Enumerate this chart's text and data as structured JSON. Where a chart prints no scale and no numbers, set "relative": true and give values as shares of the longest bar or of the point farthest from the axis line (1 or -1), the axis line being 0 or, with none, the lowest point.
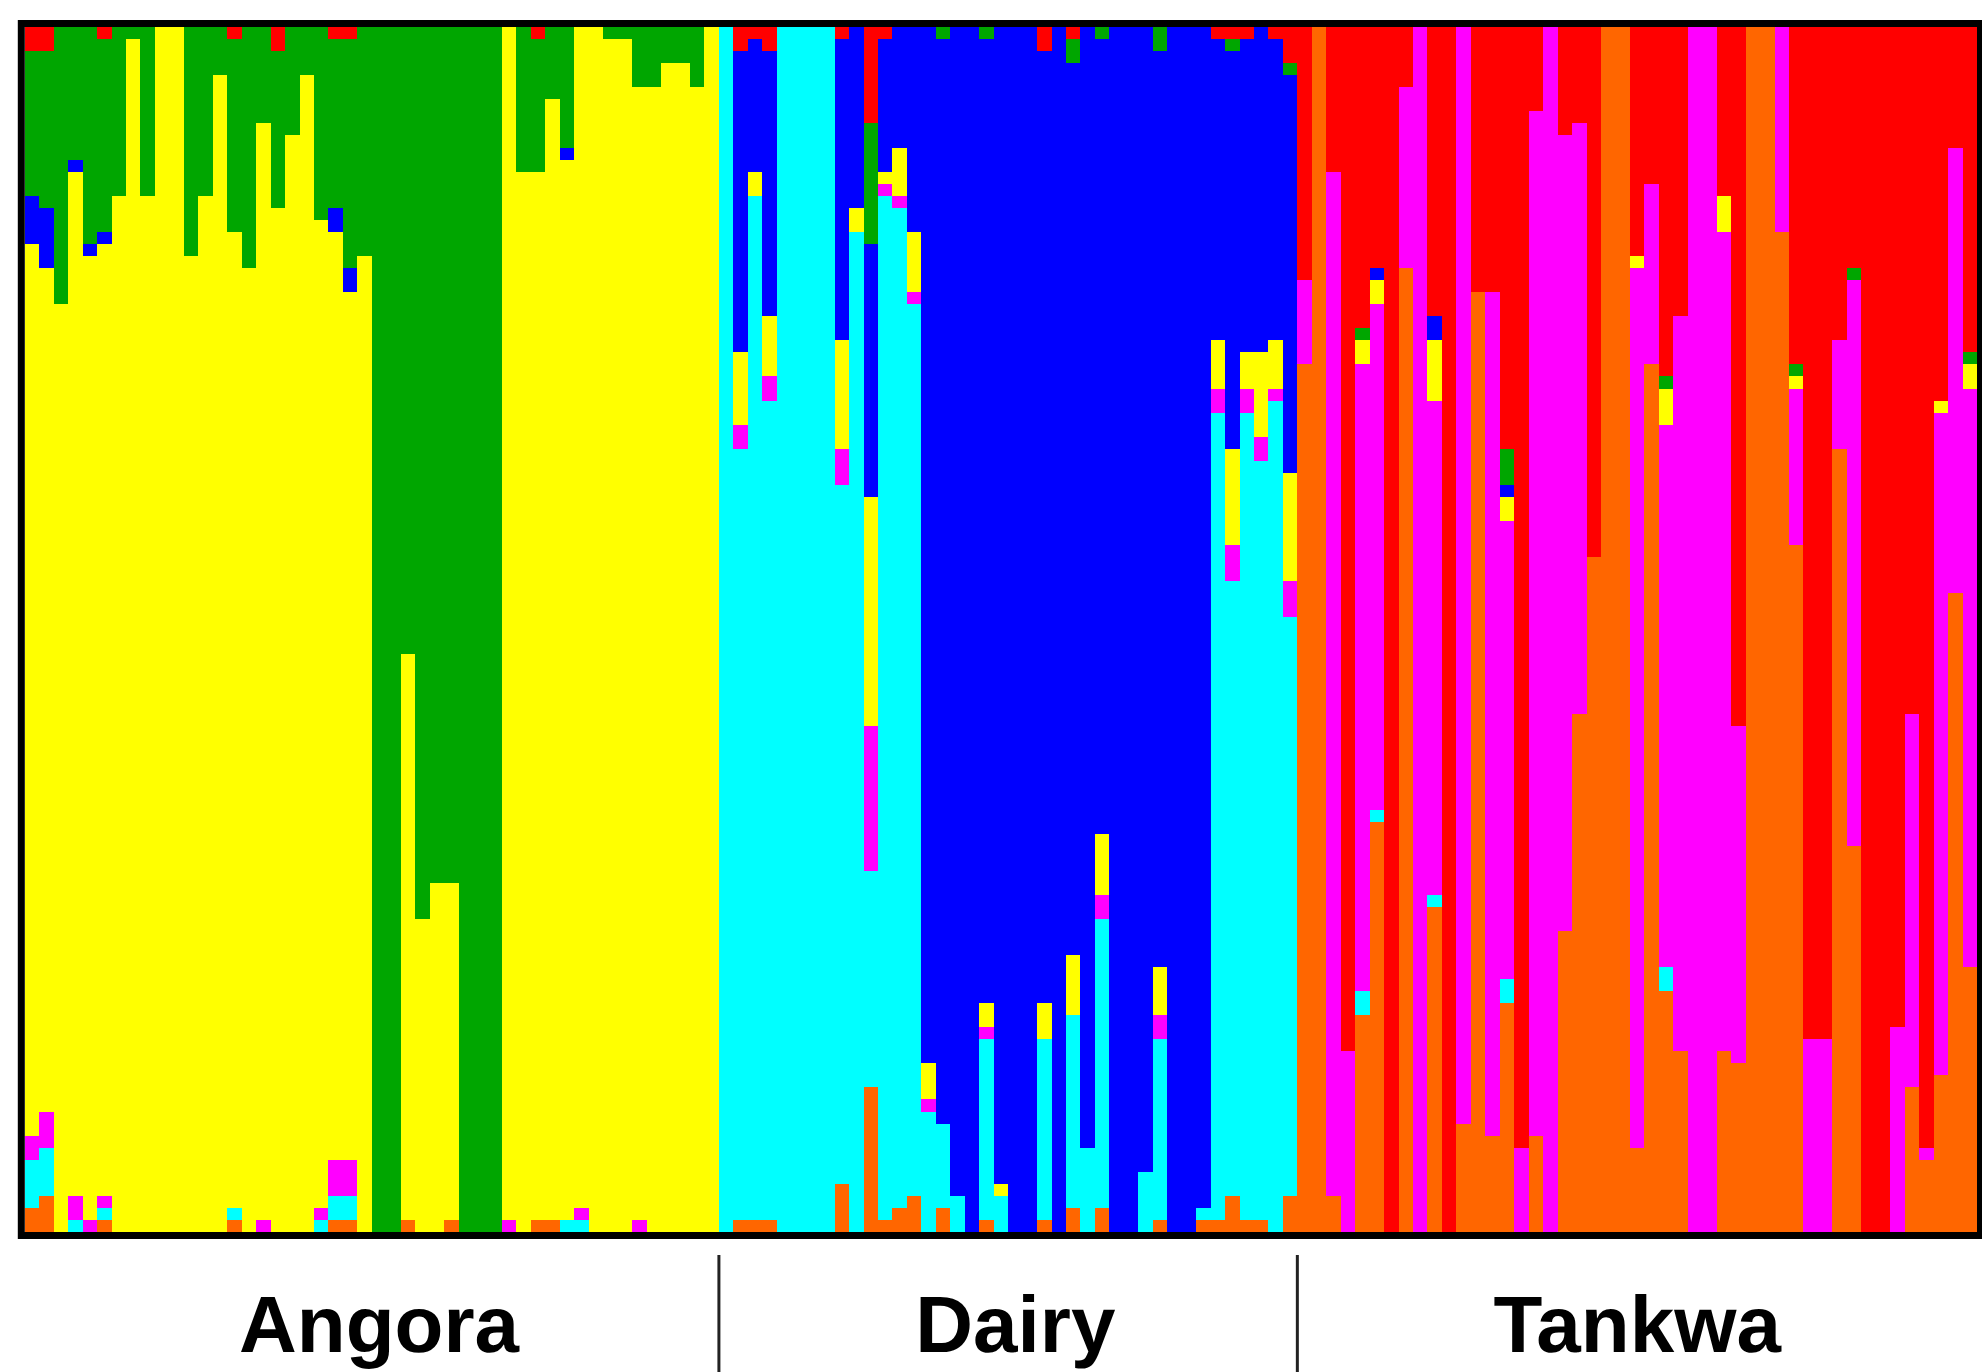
{
  "chart_data": {
    "type": "bar",
    "stacked": true,
    "relative": true,
    "categories": [
      null,
      null,
      null,
      null,
      null,
      null,
      null,
      null,
      null,
      null,
      null,
      null,
      null,
      null,
      null,
      null,
      null,
      null,
      null,
      null,
      null,
      null,
      null,
      null,
      "Angora",
      null,
      null,
      null,
      null,
      null,
      null,
      null,
      null,
      null,
      null,
      null,
      null,
      null,
      null,
      null,
      null,
      null,
      null,
      null,
      null,
      null,
      null,
      null,
      null,
      null,
      null,
      null,
      null,
      null,
      null,
      null,
      null,
      null,
      null,
      null,
      null,
      null,
      null,
      null,
      null,
      null,
      null,
      null,
      "Dairy",
      null,
      null,
      null,
      null,
      null,
      null,
      null,
      null,
      null,
      null,
      null,
      null,
      null,
      null,
      null,
      null,
      null,
      null,
      null,
      null,
      null,
      null,
      null,
      null,
      null,
      null,
      null,
      null,
      null,
      null,
      null,
      null,
      null,
      null,
      null,
      null,
      null,
      null,
      null,
      null,
      null,
      null,
      "Tankwa",
      null,
      null,
      null,
      null,
      null,
      null,
      null,
      null,
      null,
      null,
      null,
      null,
      null,
      null,
      null,
      null,
      null,
      null,
      null,
      null,
      null,
      null,
      null
    ],
    "series": [
      {
        "color": "#ff6600",
        "values": [
          0.02,
          0.03,
          0,
          0,
          0,
          0.01,
          0,
          0,
          0,
          0,
          0,
          0,
          0,
          0,
          0.01,
          0,
          0,
          0,
          0,
          0,
          0,
          0.01,
          0.01,
          0,
          0,
          0,
          0.01,
          0,
          0,
          0.01,
          0,
          0,
          0,
          0,
          0,
          0.01,
          0.01,
          0,
          0,
          0,
          0,
          0,
          0,
          0,
          0,
          0,
          0,
          0,
          0,
          0.01,
          0.01,
          0.01,
          0,
          0,
          0,
          0,
          0.04,
          0,
          0.12,
          0.01,
          0.02,
          0.03,
          0,
          0.02,
          0,
          0,
          0.01,
          0,
          0,
          0,
          0.01,
          0,
          0.02,
          0,
          0.02,
          0,
          0,
          0,
          0.01,
          0,
          0,
          0.01,
          0.01,
          0.03,
          0.01,
          0.01,
          0,
          0.03,
          0.72,
          1,
          0.03,
          0,
          0.18,
          0.34,
          0,
          0.8,
          0,
          0.27,
          0,
          0.09,
          0.78,
          0.08,
          0.19,
          0,
          0.08,
          0,
          0.25,
          0.43,
          0.56,
          1,
          1,
          0.07,
          0.72,
          0.2,
          0.15,
          0,
          0,
          0.15,
          0.14,
          1,
          1,
          0.83,
          0.57,
          0,
          0,
          0.65,
          0.32,
          0,
          0,
          0,
          0.12,
          0.06,
          0.13,
          0.53,
          0.22
        ]
      },
      {
        "color": "#00ffff",
        "values": [
          0.04,
          0.04,
          0,
          0.01,
          0,
          0.01,
          0,
          0,
          0,
          0,
          0,
          0,
          0,
          0,
          0.01,
          0,
          0,
          0,
          0,
          0,
          0.01,
          0.02,
          0.02,
          0,
          0,
          0,
          0,
          0,
          0,
          0,
          0,
          0,
          0,
          0,
          0,
          0,
          0,
          0.01,
          0.01,
          0,
          0,
          0,
          0,
          0,
          0,
          0,
          0,
          0,
          1,
          0.64,
          0.85,
          0.68,
          1,
          1,
          1,
          1,
          0.58,
          0.83,
          0.18,
          0.85,
          0.83,
          0.74,
          0.1,
          0.07,
          0.03,
          0,
          0.15,
          0.03,
          0,
          0,
          0.15,
          0,
          0.16,
          0.07,
          0.24,
          0,
          0,
          0.05,
          0.15,
          0,
          0,
          0.01,
          0.67,
          0.51,
          0.67,
          0.63,
          0.69,
          0.48,
          0,
          0,
          0,
          0,
          0.02,
          0.01,
          0,
          0,
          0,
          0.01,
          0,
          0,
          0,
          0,
          0.02,
          0,
          0,
          0,
          0,
          0,
          0,
          0,
          0,
          0,
          0,
          0.02,
          0,
          0,
          0,
          0,
          0,
          0,
          0,
          0,
          0,
          0,
          0,
          0,
          0,
          0,
          0,
          0,
          0,
          0,
          0,
          0,
          0
        ]
      },
      {
        "color": "#ff00ff",
        "values": [
          0.02,
          0.03,
          0,
          0.02,
          0.01,
          0.01,
          0,
          0,
          0,
          0,
          0,
          0,
          0,
          0,
          0,
          0,
          0.01,
          0,
          0,
          0,
          0.01,
          0.03,
          0.03,
          0,
          0,
          0,
          0,
          0,
          0,
          0,
          0,
          0,
          0,
          0.01,
          0,
          0,
          0,
          0,
          0.01,
          0,
          0,
          0,
          0.01,
          0,
          0,
          0,
          0,
          0,
          0,
          0.02,
          0,
          0.02,
          0,
          0,
          0,
          0,
          0.03,
          0,
          0.12,
          0.01,
          0.01,
          0.01,
          0.01,
          0,
          0,
          0,
          0.01,
          0,
          0,
          0,
          0,
          0,
          0,
          0,
          0.02,
          0,
          0,
          0,
          0.02,
          0,
          0,
          0,
          0.02,
          0.03,
          0.02,
          0.02,
          0.01,
          0.03,
          0.07,
          0,
          0.85,
          0.15,
          0.52,
          0.42,
          0,
          0.15,
          1,
          0.41,
          0,
          0.91,
          0,
          0.7,
          0.38,
          0.07,
          0.85,
          1,
          0.66,
          0.49,
          0,
          0,
          0,
          0.73,
          0.15,
          0.45,
          0.61,
          1,
          1,
          0.68,
          0.28,
          0,
          0,
          0.17,
          0.13,
          0.16,
          0.16,
          0.09,
          0.47,
          0,
          0,
          0.17,
          0.31,
          0.01,
          0.55,
          0.37,
          0.48
        ]
      },
      {
        "color": "#ffff00",
        "values": [
          0.74,
          0.7,
          0.77,
          0.85,
          0.8,
          0.79,
          0.86,
          0.99,
          0.86,
          1,
          1,
          0.81,
          0.86,
          0.96,
          0.81,
          0.8,
          0.91,
          0.85,
          0.91,
          0.96,
          0.82,
          0.77,
          0.72,
          0.81,
          0,
          0,
          0.47,
          0.26,
          0.29,
          0.28,
          0,
          0,
          0,
          0.99,
          0.88,
          0.87,
          0.93,
          0.88,
          0.98,
          1,
          0.99,
          0.99,
          0.94,
          0.95,
          0.97,
          0.97,
          0.95,
          1,
          0,
          0.06,
          0.02,
          0.05,
          0,
          0,
          0,
          0,
          0.09,
          0.02,
          0.19,
          0.01,
          0.04,
          0.05,
          0.03,
          0,
          0,
          0,
          0.02,
          0.01,
          0,
          0,
          0.03,
          0,
          0.05,
          0,
          0.05,
          0,
          0,
          0,
          0.04,
          0,
          0,
          0,
          0.04,
          0.08,
          0.03,
          0.07,
          0.04,
          0.09,
          0,
          0,
          0,
          0,
          0.02,
          0.02,
          0,
          0,
          0,
          0.05,
          0,
          0,
          0,
          0,
          0.02,
          0,
          0,
          0,
          0,
          0,
          0,
          0,
          0,
          0.01,
          0,
          0.03,
          0,
          0,
          0,
          0.03,
          0,
          0,
          0,
          0,
          0.01,
          0,
          0,
          0,
          0,
          0,
          0,
          0,
          0,
          0,
          0.01,
          0,
          0.02
        ]
      },
      {
        "color": "#0000ff",
        "values": [
          0.04,
          0.05,
          0,
          0.01,
          0.01,
          0.01,
          0,
          0,
          0,
          0,
          0,
          0,
          0,
          0,
          0,
          0,
          0,
          0,
          0,
          0,
          0,
          0.02,
          0.02,
          0,
          0,
          0,
          0,
          0,
          0,
          0,
          0,
          0,
          0,
          0,
          0,
          0,
          0,
          0.01,
          0,
          0,
          0,
          0,
          0,
          0,
          0,
          0,
          0,
          0,
          0,
          0.25,
          0.11,
          0.22,
          0,
          0,
          0,
          0,
          0.25,
          0.15,
          0.21,
          0.11,
          0.1,
          0.17,
          0.86,
          0.9,
          0.97,
          1,
          0.8,
          0.96,
          1,
          1,
          0.79,
          1,
          0.74,
          0.93,
          0.66,
          1,
          1,
          0.95,
          0.76,
          1,
          1,
          0.98,
          0.25,
          0.33,
          0.26,
          0.27,
          0.25,
          0.33,
          0,
          0,
          0,
          0,
          0,
          0.01,
          0,
          0,
          0,
          0.02,
          0,
          0,
          0,
          0,
          0.01,
          0,
          0,
          0,
          0,
          0,
          0,
          0,
          0,
          0,
          0,
          0,
          0,
          0,
          0,
          0,
          0,
          0,
          0,
          0,
          0,
          0,
          0,
          0,
          0,
          0,
          0,
          0,
          0,
          0,
          0,
          0,
          0
        ]
      },
      {
        "color": "#00a600",
        "values": [
          0.12,
          0.13,
          0.23,
          0.11,
          0.18,
          0.16,
          0.14,
          0.01,
          0.14,
          0,
          0,
          0.19,
          0.14,
          0.04,
          0.16,
          0.2,
          0.08,
          0.13,
          0.09,
          0.04,
          0.16,
          0.14,
          0.19,
          0.19,
          1,
          1,
          0.52,
          0.74,
          0.71,
          0.71,
          1,
          1,
          1,
          0,
          0.12,
          0.11,
          0.06,
          0.1,
          0,
          0,
          0.01,
          0.01,
          0.05,
          0.05,
          0.03,
          0.03,
          0.05,
          0,
          0,
          0,
          0,
          0,
          0,
          0,
          0,
          0,
          0,
          0,
          0.1,
          0,
          0,
          0,
          0,
          0.01,
          0,
          0,
          0.01,
          0,
          0,
          0,
          0,
          0,
          0.02,
          0,
          0.01,
          0,
          0,
          0,
          0.02,
          0,
          0,
          0,
          0,
          0.01,
          0,
          0,
          0,
          0.01,
          0,
          0,
          0,
          0,
          0.01,
          0,
          0,
          0,
          0,
          0,
          0,
          0,
          0,
          0,
          0.03,
          0,
          0,
          0,
          0,
          0,
          0,
          0,
          0,
          0,
          0,
          0.01,
          0,
          0,
          0,
          0,
          0,
          0,
          0,
          0,
          0.01,
          0,
          0,
          0,
          0.01,
          0,
          0,
          0,
          0,
          0,
          0,
          0,
          0.01
        ]
      },
      {
        "color": "#ff0000",
        "values": [
          0.02,
          0.02,
          0,
          0,
          0,
          0.01,
          0,
          0,
          0,
          0,
          0,
          0,
          0,
          0,
          0.01,
          0,
          0,
          0.02,
          0,
          0,
          0,
          0.01,
          0.01,
          0,
          0,
          0,
          0,
          0,
          0,
          0,
          0,
          0,
          0,
          0,
          0,
          0.01,
          0,
          0,
          0,
          0,
          0,
          0,
          0,
          0,
          0,
          0,
          0,
          0,
          0,
          0.02,
          0.01,
          0.02,
          0,
          0,
          0,
          0,
          0.01,
          0,
          0.08,
          0.01,
          0,
          0,
          0,
          0,
          0,
          0,
          0,
          0,
          0,
          0,
          0.02,
          0,
          0.01,
          0,
          0,
          0,
          0,
          0,
          0,
          0,
          0,
          0,
          0.01,
          0.01,
          0.01,
          0,
          0.01,
          0.03,
          0.21,
          0,
          0.12,
          0.85,
          0.25,
          0.2,
          1,
          0.05,
          0,
          0.24,
          1,
          0,
          0.22,
          0.22,
          0.35,
          0.93,
          0.07,
          0,
          0.09,
          0.08,
          0.44,
          0,
          0,
          0.19,
          0.13,
          0.29,
          0.24,
          0,
          0,
          0.14,
          0.58,
          0,
          0,
          0,
          0.28,
          0.84,
          0.84,
          0.26,
          0.2,
          1,
          1,
          0.83,
          0.57,
          0.93,
          0.31,
          0.1,
          0.27
        ]
      }
    ]
  }
}
